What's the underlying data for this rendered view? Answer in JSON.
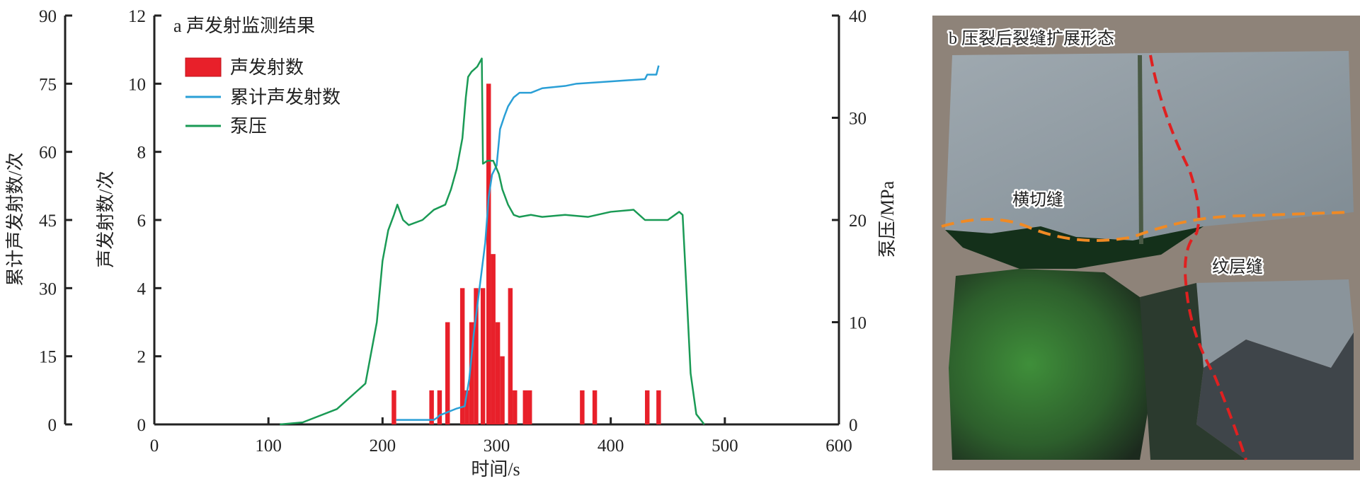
{
  "chart_data": {
    "type": "bar+line",
    "title": "a 声发射监测结果",
    "xlabel": "时间/s",
    "xlim": [
      0,
      600
    ],
    "xticks": [
      "0",
      "100",
      "200",
      "300",
      "400",
      "500",
      "600"
    ],
    "y_left_outer": {
      "label": "累计声发射数/次",
      "lim": [
        0,
        90
      ],
      "ticks": [
        "0",
        "15",
        "30",
        "45",
        "60",
        "75",
        "90"
      ]
    },
    "y_left_inner": {
      "label": "声发射数/次",
      "lim": [
        0,
        12
      ],
      "ticks": [
        "0",
        "2",
        "4",
        "6",
        "8",
        "10",
        "12"
      ]
    },
    "y_right": {
      "label": "泵压/MPa",
      "lim": [
        0,
        40
      ],
      "ticks": [
        "0",
        "10",
        "20",
        "30",
        "40"
      ]
    },
    "legend_position": "top-left",
    "colors": {
      "bars": "#e8202a",
      "cumulative": "#2a9fd6",
      "pressure": "#1a9a55"
    },
    "series": [
      {
        "name": "声发射数",
        "kind": "bar",
        "axis": "y_left_inner",
        "x": [
          210,
          243,
          250,
          257,
          270,
          274,
          278,
          282,
          288,
          293,
          297,
          301,
          305,
          312,
          316,
          325,
          329,
          375,
          386,
          432,
          442
        ],
        "values": [
          1,
          1,
          1,
          3,
          4,
          1,
          3,
          4,
          4,
          10,
          5,
          3,
          2,
          4,
          1,
          1,
          1,
          1,
          1,
          1,
          1
        ]
      },
      {
        "name": "累计声发射数",
        "kind": "line",
        "axis": "y_left_outer",
        "x": [
          212,
          245,
          248,
          250,
          255,
          260,
          265,
          272,
          276,
          280,
          285,
          290,
          293,
          296,
          300,
          303,
          307,
          310,
          315,
          320,
          330,
          340,
          360,
          370,
          400,
          430,
          432,
          440,
          442
        ],
        "values": [
          1,
          1,
          1.5,
          2,
          2.5,
          3,
          3.5,
          4,
          10,
          20,
          30,
          40,
          50,
          55,
          57,
          65,
          68,
          70,
          72,
          73,
          73,
          74,
          74.5,
          75,
          75.5,
          76,
          77,
          77,
          79
        ]
      },
      {
        "name": "泵压",
        "kind": "line",
        "axis": "y_right",
        "x": [
          110,
          130,
          160,
          185,
          195,
          200,
          205,
          210,
          213,
          218,
          223,
          235,
          245,
          255,
          260,
          265,
          270,
          273,
          275,
          278,
          283,
          287,
          288,
          292,
          297,
          302,
          305,
          310,
          315,
          320,
          330,
          340,
          360,
          380,
          400,
          420,
          430,
          450,
          460,
          463,
          466,
          470,
          475,
          482
        ],
        "values": [
          0,
          0.2,
          1.5,
          4,
          10,
          16,
          19,
          20.5,
          21.5,
          20,
          19.5,
          20,
          21,
          21.5,
          23,
          25,
          28,
          32,
          34,
          34.5,
          35,
          35.8,
          25.5,
          25.8,
          25.8,
          24.5,
          23,
          21.5,
          20.5,
          20.3,
          20.5,
          20.3,
          20.5,
          20.3,
          20.8,
          21,
          20,
          20,
          20.8,
          20.5,
          14,
          5,
          1,
          0
        ]
      }
    ]
  },
  "photo": {
    "title": "b 压裂后裂缝扩展形态",
    "label_transverse": "横切缝",
    "label_lamina": "纹层缝"
  }
}
